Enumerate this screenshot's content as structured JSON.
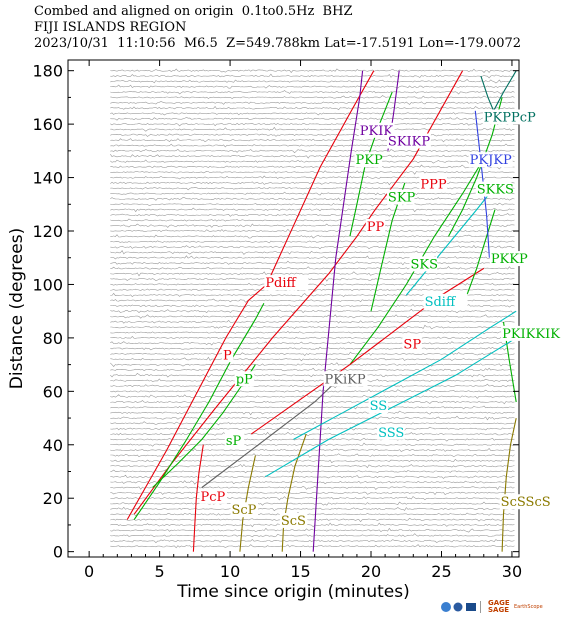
{
  "header": {
    "line1": "Combed and aligned on origin  0.1to0.5Hz  BHZ",
    "line2": "FIJI ISLANDS REGION",
    "line3": "2023/10/31  11:10:56  M6.5  Z=549.788km Lat=-17.5191 Lon=-179.0072"
  },
  "footer": {
    "logo_gage": "GAGE",
    "logo_sage": "SAGE",
    "logo_earthscope": "EarthScope"
  },
  "chart_data": {
    "type": "line",
    "xlabel": "Time since origin (minutes)",
    "ylabel": "Distance (degrees)",
    "xlim": [
      -1.5,
      30.5
    ],
    "ylim": [
      -2,
      184
    ],
    "xticks": [
      0,
      5,
      10,
      15,
      20,
      25,
      30
    ],
    "yticks": [
      0,
      20,
      40,
      60,
      80,
      100,
      120,
      140,
      160,
      180
    ],
    "trace_spacing_deg": 2,
    "phases": [
      {
        "name": "P",
        "color": "#e8000b",
        "label": "P",
        "label_at": [
          9.5,
          72
        ],
        "points": [
          [
            2.7,
            12
          ],
          [
            4,
            24
          ],
          [
            5.5,
            38
          ],
          [
            7,
            53
          ],
          [
            8.3,
            66
          ],
          [
            9.7,
            80
          ],
          [
            11.3,
            94
          ],
          [
            12.6,
            100
          ]
        ]
      },
      {
        "name": "Pdiff",
        "color": "#e8000b",
        "label": "Pdiff",
        "label_at": [
          12.5,
          99
        ],
        "points": [
          [
            12.6,
            100
          ],
          [
            14.5,
            122
          ],
          [
            16.4,
            144
          ],
          [
            18.5,
            164
          ],
          [
            20.2,
            180
          ]
        ]
      },
      {
        "name": "PP",
        "color": "#e8000b",
        "label": "PP",
        "label_at": [
          19.7,
          120
        ],
        "points": [
          [
            3.2,
            14
          ],
          [
            5.7,
            32
          ],
          [
            9,
            54
          ],
          [
            13,
            80
          ],
          [
            17,
            104
          ],
          [
            19,
            118
          ],
          [
            20.3,
            128
          ]
        ]
      },
      {
        "name": "PPP",
        "color": "#e8000b",
        "label": "PPP",
        "label_at": [
          23.5,
          136
        ],
        "points": [
          [
            20.3,
            128
          ],
          [
            23,
            147
          ],
          [
            26.5,
            180
          ]
        ]
      },
      {
        "name": "pP",
        "color": "#00b000",
        "label": "pP",
        "label_at": [
          10.4,
          63
        ],
        "points": [
          [
            3.2,
            12
          ],
          [
            5,
            26
          ],
          [
            6.8,
            41
          ],
          [
            8.5,
            56
          ],
          [
            10.1,
            72
          ],
          [
            11.8,
            87
          ],
          [
            12.4,
            93
          ]
        ]
      },
      {
        "name": "sP",
        "color": "#00b000",
        "label": "sP",
        "label_at": [
          9.7,
          40
        ],
        "points": [
          [
            4.5,
            24
          ],
          [
            6.3,
            33
          ],
          [
            8,
            42
          ],
          [
            9.5,
            52
          ],
          [
            10.8,
            62
          ],
          [
            11.8,
            70
          ]
        ]
      },
      {
        "name": "PcP",
        "color": "#e8000b",
        "label": "PcP",
        "label_at": [
          7.9,
          19
        ],
        "points": [
          [
            7.4,
            0
          ],
          [
            7.5,
            10
          ],
          [
            7.6,
            20
          ],
          [
            7.8,
            30
          ],
          [
            8.1,
            40
          ]
        ]
      },
      {
        "name": "ScP",
        "color": "#8b7a00",
        "label": "ScP",
        "label_at": [
          10.1,
          14
        ],
        "points": [
          [
            10.7,
            0
          ],
          [
            10.9,
            12
          ],
          [
            11.3,
            24
          ],
          [
            11.8,
            36
          ]
        ]
      },
      {
        "name": "ScS",
        "color": "#8b7a00",
        "label": "ScS",
        "label_at": [
          13.6,
          10
        ],
        "points": [
          [
            13.7,
            0
          ],
          [
            13.8,
            10
          ],
          [
            14.1,
            20
          ],
          [
            14.6,
            32
          ],
          [
            15.4,
            44
          ]
        ]
      },
      {
        "name": "ScSScS",
        "color": "#8b7a00",
        "label": "ScSScS",
        "label_at": [
          29.2,
          17
        ],
        "points": [
          [
            29.3,
            0
          ],
          [
            29.4,
            14
          ],
          [
            29.6,
            28
          ],
          [
            29.9,
            40
          ],
          [
            30.3,
            50
          ]
        ]
      },
      {
        "name": "PKiKP",
        "color": "#606060",
        "label": "PKiKP",
        "label_at": [
          16.7,
          63
        ],
        "points": [
          [
            8,
            24
          ],
          [
            12,
            40
          ],
          [
            16,
            56
          ],
          [
            18,
            66
          ]
        ]
      },
      {
        "name": "PKIKP",
        "color": "#7000a0",
        "label": "PKIK",
        "label_at": [
          19.2,
          156
        ],
        "points": [
          [
            15.9,
            0
          ],
          [
            16.6,
            60
          ],
          [
            17.5,
            110
          ],
          [
            18.6,
            150
          ],
          [
            19.2,
            170
          ],
          [
            19.4,
            180
          ]
        ]
      },
      {
        "name": "SKIKP",
        "color": "#7000a0",
        "label": "SKIKP",
        "label_at": [
          21.2,
          152
        ],
        "points": [
          [
            21.2,
            150
          ],
          [
            21.6,
            164
          ],
          [
            22,
            180
          ]
        ]
      },
      {
        "name": "PKP",
        "color": "#00b000",
        "label": "PKP",
        "label_at": [
          18.9,
          145
        ],
        "points": [
          [
            18.5,
            118
          ],
          [
            19,
            130
          ],
          [
            19.6,
            145
          ],
          [
            20.6,
            160
          ],
          [
            21.5,
            172
          ]
        ]
      },
      {
        "name": "SKP",
        "color": "#00b000",
        "label": "SKP",
        "label_at": [
          21.2,
          131
        ],
        "points": [
          [
            20,
            90
          ],
          [
            20.7,
            106
          ],
          [
            21.5,
            124
          ],
          [
            22.4,
            138
          ]
        ]
      },
      {
        "name": "SKS",
        "color": "#00b000",
        "label": "SKS",
        "label_at": [
          22.8,
          106
        ],
        "points": [
          [
            18.5,
            70
          ],
          [
            20.5,
            84
          ],
          [
            22.5,
            100
          ],
          [
            24.5,
            118
          ],
          [
            26.5,
            134
          ],
          [
            28,
            147
          ]
        ]
      },
      {
        "name": "Sdiff",
        "color": "#00c0c0",
        "label": "Sdiff",
        "label_at": [
          23.8,
          92
        ],
        "points": [
          [
            22.5,
            96
          ],
          [
            25,
            112
          ],
          [
            27.5,
            128
          ],
          [
            29,
            138
          ]
        ]
      },
      {
        "name": "SP",
        "color": "#e8000b",
        "label": "SP",
        "label_at": [
          22.3,
          76
        ],
        "points": [
          [
            11.5,
            44
          ],
          [
            15,
            57
          ],
          [
            18.5,
            70
          ],
          [
            22,
            84
          ],
          [
            25,
            96
          ],
          [
            28,
            106
          ]
        ]
      },
      {
        "name": "SKKS",
        "color": "#00b000",
        "label": "SKKS",
        "label_at": [
          27.5,
          134
        ],
        "points": [
          [
            25.5,
            118
          ],
          [
            26.5,
            128
          ],
          [
            27.5,
            140
          ],
          [
            28.6,
            156
          ],
          [
            29.3,
            170
          ]
        ]
      },
      {
        "name": "PKKP",
        "color": "#00b000",
        "label": "PKKP",
        "label_at": [
          28.5,
          108
        ],
        "points": [
          [
            26.8,
            96
          ],
          [
            27.5,
            106
          ],
          [
            28.2,
            118
          ],
          [
            28.8,
            128
          ]
        ]
      },
      {
        "name": "PKJKP",
        "color": "#3040e0",
        "label": "PKJKP",
        "label_at": [
          27,
          145
        ],
        "points": [
          [
            28.4,
            110
          ],
          [
            28.2,
            126
          ],
          [
            27.8,
            146
          ],
          [
            27.4,
            165
          ]
        ]
      },
      {
        "name": "PKPPcP",
        "color": "#007060",
        "label": "PKPPcP",
        "label_at": [
          28,
          161
        ],
        "points": [
          [
            27.8,
            178
          ],
          [
            28.3,
            170
          ],
          [
            28.7,
            165
          ],
          [
            29.4,
            172
          ],
          [
            30.3,
            180
          ]
        ]
      },
      {
        "name": "PKIKKIK",
        "color": "#00b000",
        "label": "PKIKKIK",
        "label_at": [
          29.3,
          80
        ],
        "points": [
          [
            29.4,
            86
          ],
          [
            29.8,
            72
          ],
          [
            30.3,
            56
          ]
        ]
      },
      {
        "name": "SS",
        "color": "#00c0c0",
        "label": "SS",
        "label_at": [
          19.9,
          53
        ],
        "points": [
          [
            14.5,
            42
          ],
          [
            18,
            52
          ],
          [
            21.5,
            62
          ],
          [
            25,
            72
          ],
          [
            28.5,
            84
          ],
          [
            30.3,
            90
          ]
        ]
      },
      {
        "name": "SSS",
        "color": "#00c0c0",
        "label": "SSS",
        "label_at": [
          20.5,
          43
        ],
        "points": [
          [
            12.5,
            28
          ],
          [
            17,
            42
          ],
          [
            21.5,
            54
          ],
          [
            26,
            66
          ],
          [
            30.3,
            80
          ]
        ]
      }
    ]
  }
}
